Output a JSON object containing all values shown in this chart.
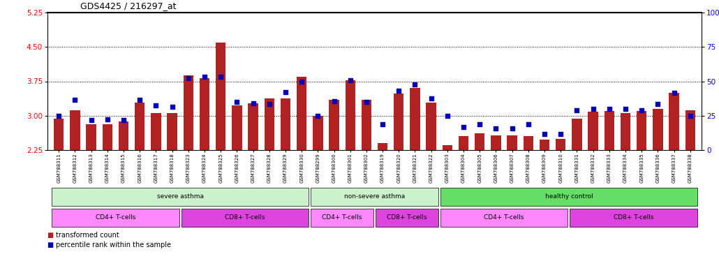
{
  "title": "GDS4425 / 216297_at",
  "samples": [
    "GSM788311",
    "GSM788312",
    "GSM788313",
    "GSM788314",
    "GSM788315",
    "GSM788316",
    "GSM788317",
    "GSM788318",
    "GSM788323",
    "GSM788324",
    "GSM788325",
    "GSM788326",
    "GSM788327",
    "GSM788328",
    "GSM788329",
    "GSM788330",
    "GSM788299",
    "GSM788300",
    "GSM788301",
    "GSM788302",
    "GSM788319",
    "GSM788320",
    "GSM788321",
    "GSM788322",
    "GSM788303",
    "GSM788304",
    "GSM788305",
    "GSM788306",
    "GSM788307",
    "GSM788308",
    "GSM788309",
    "GSM788310",
    "GSM788331",
    "GSM788332",
    "GSM788333",
    "GSM788334",
    "GSM788335",
    "GSM788336",
    "GSM788337",
    "GSM788338"
  ],
  "transformed_count": [
    2.93,
    3.12,
    2.82,
    2.82,
    2.87,
    3.28,
    3.05,
    3.05,
    3.88,
    3.82,
    4.6,
    3.22,
    3.27,
    3.37,
    3.38,
    3.85,
    3.0,
    3.35,
    3.78,
    3.35,
    2.4,
    3.48,
    3.6,
    3.28,
    2.35,
    2.55,
    2.62,
    2.57,
    2.57,
    2.55,
    2.48,
    2.5,
    2.93,
    3.08,
    3.1,
    3.05,
    3.1,
    3.15,
    3.5,
    3.12
  ],
  "percentile": [
    3.0,
    3.35,
    2.9,
    2.92,
    2.91,
    3.35,
    3.22,
    3.2,
    3.82,
    3.85,
    3.85,
    3.3,
    3.27,
    3.25,
    3.52,
    3.75,
    3.0,
    3.32,
    3.78,
    3.3,
    2.82,
    3.55,
    3.68,
    3.38,
    3.0,
    2.75,
    2.82,
    2.72,
    2.72,
    2.82,
    2.6,
    2.6,
    3.12,
    3.15,
    3.15,
    3.15,
    3.12,
    3.25,
    3.5,
    3.0
  ],
  "ylim": [
    2.25,
    5.25
  ],
  "yticks": [
    2.25,
    3.0,
    3.75,
    4.5,
    5.25
  ],
  "y2lim": [
    0,
    100
  ],
  "y2ticks": [
    0,
    25,
    50,
    75,
    100
  ],
  "bar_color": "#b22222",
  "dot_color": "#0000bb",
  "disease_state_groups": [
    {
      "label": "severe asthma",
      "start": 0,
      "end": 15,
      "color": "#ccf2cc"
    },
    {
      "label": "non-severe asthma",
      "start": 16,
      "end": 23,
      "color": "#ccf2cc"
    },
    {
      "label": "healthy control",
      "start": 24,
      "end": 39,
      "color": "#66dd66"
    }
  ],
  "cell_type_groups": [
    {
      "label": "CD4+ T-cells",
      "start": 0,
      "end": 7,
      "color": "#ff88ff"
    },
    {
      "label": "CD8+ T-cells",
      "start": 8,
      "end": 15,
      "color": "#dd44dd"
    },
    {
      "label": "CD4+ T-cells",
      "start": 16,
      "end": 19,
      "color": "#ff88ff"
    },
    {
      "label": "CD8+ T-cells",
      "start": 20,
      "end": 23,
      "color": "#dd44dd"
    },
    {
      "label": "CD4+ T-cells",
      "start": 24,
      "end": 31,
      "color": "#ff88ff"
    },
    {
      "label": "CD8+ T-cells",
      "start": 32,
      "end": 39,
      "color": "#dd44dd"
    }
  ]
}
